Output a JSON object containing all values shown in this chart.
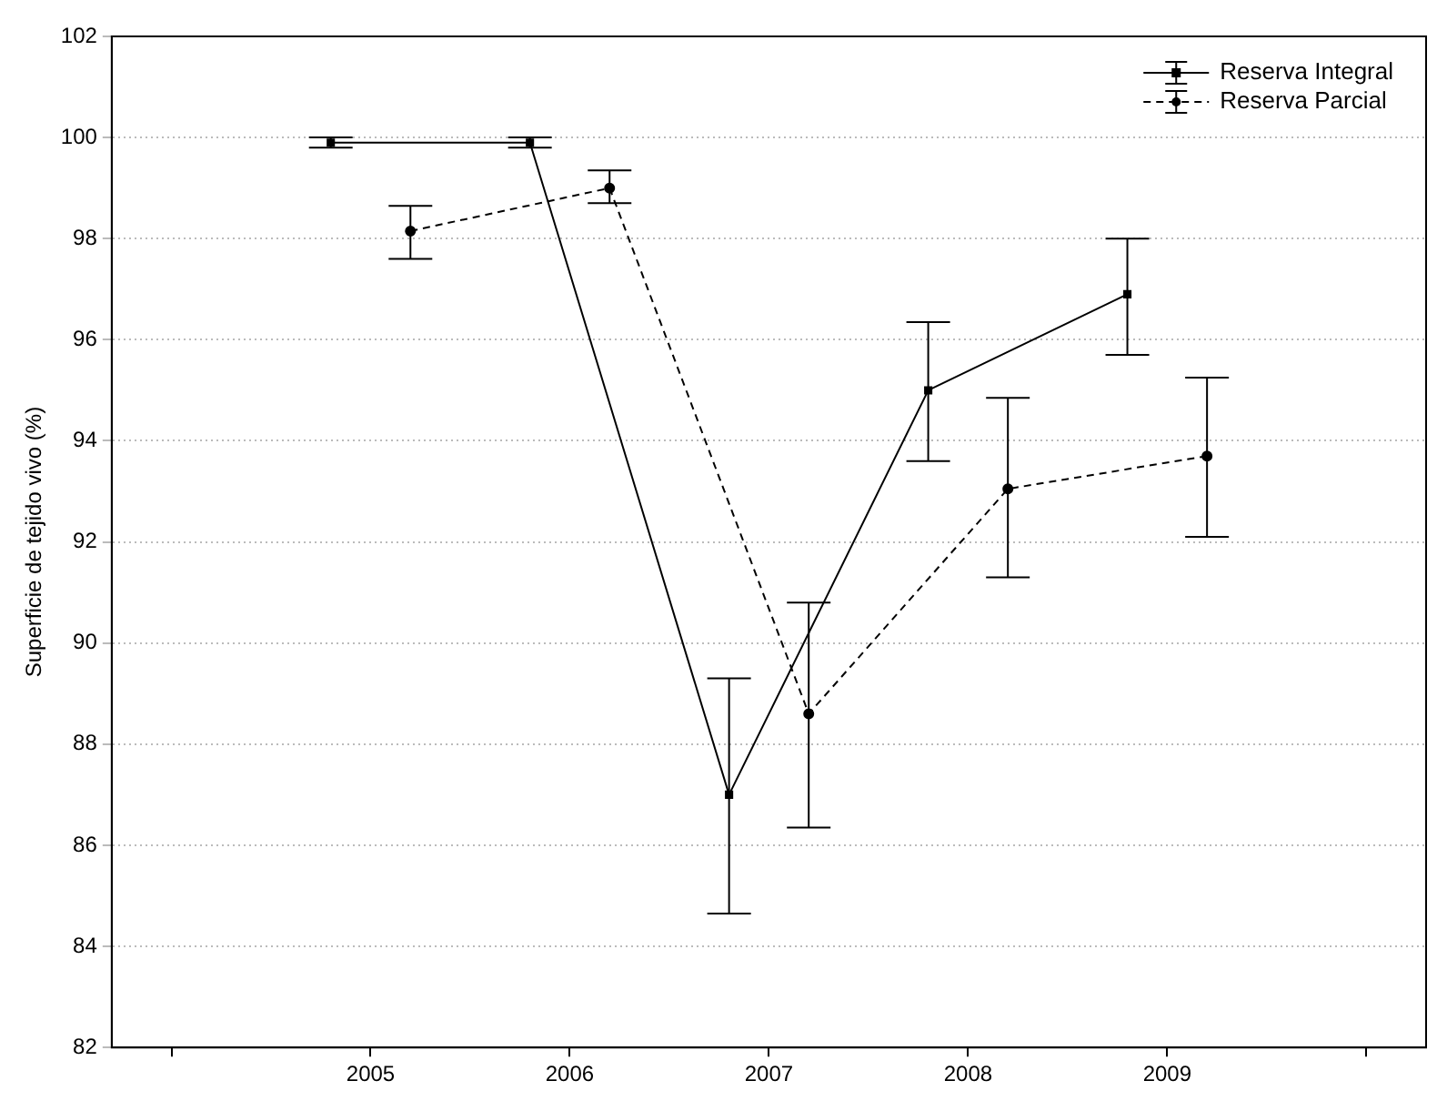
{
  "chart_data": {
    "type": "line",
    "ylabel": "Superficie de tejido vivo (%)",
    "xlim": [
      2003.7,
      2010.3
    ],
    "xticks": [
      {
        "value": 2004,
        "label": null
      },
      2005,
      2006,
      2007,
      2008,
      2009,
      {
        "value": 2010,
        "label": null
      }
    ],
    "ylim": [
      82,
      102
    ],
    "yticks": [
      82,
      84,
      86,
      88,
      90,
      92,
      94,
      96,
      98,
      100,
      102
    ],
    "grid": "y",
    "legend": "top right",
    "series": [
      {
        "name": "Reserva Integral",
        "color": "#000000",
        "marker": "square",
        "line_style": "solid",
        "x": [
          2004.8,
          2005.8,
          2006.8,
          2007.8,
          2008.8
        ],
        "values": [
          99.9,
          99.9,
          87.0,
          95.0,
          96.9
        ],
        "errors": [
          0.1,
          0.1,
          [
            84.65,
            89.3
          ],
          [
            93.6,
            96.35
          ],
          [
            95.7,
            98.0
          ]
        ]
      },
      {
        "name": "Reserva Parcial",
        "color": "#000000",
        "marker": "circle",
        "line_style": "dashed",
        "x": [
          2005.2,
          2006.2,
          2007.2,
          2008.2,
          2009.2
        ],
        "values": [
          98.15,
          99.0,
          88.6,
          93.05,
          93.7
        ],
        "errors": [
          [
            97.6,
            98.65
          ],
          [
            98.7,
            99.35
          ],
          [
            86.35,
            90.8
          ],
          [
            91.3,
            94.85
          ],
          [
            92.1,
            95.25
          ]
        ]
      }
    ]
  }
}
